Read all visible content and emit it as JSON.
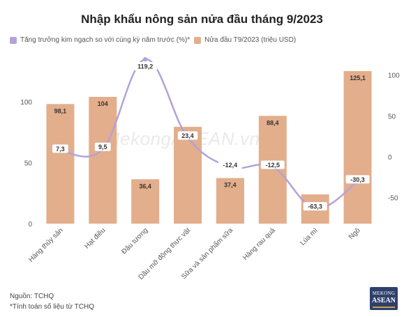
{
  "title": "Nhập khẩu nông sản nửa đầu tháng 9/2023",
  "legend": {
    "line_label": "Tăng trưởng kim ngạch so với cùng kỳ năm trước (%)*",
    "bar_label": "Nửa đầu T9/2023 (triệu USD)"
  },
  "source": "Nguồn: TCHQ",
  "note": "*Tính toán số liệu từ TCHQ",
  "watermark": "MekongASEAN.vn",
  "logo": {
    "top": "MEKONG",
    "bottom": "ASEAN"
  },
  "colors": {
    "bar": "#e3ae8c",
    "line": "#b3a2d6",
    "axis_text": "#555555"
  },
  "chart_data": {
    "type": "bar+line",
    "categories": [
      "Hàng thủy sản",
      "Hạt điều",
      "Đậu tương",
      "Dầu mỡ động thực vật",
      "Sữa và sản phẩm sữa",
      "Hàng rau quả",
      "Lúa mì",
      "Ngô"
    ],
    "series": [
      {
        "name": "Nửa đầu T9/2023 (triệu USD)",
        "type": "bar",
        "axis": "left",
        "values": [
          98.1,
          104,
          36.4,
          79.4,
          37.4,
          88.4,
          24.0,
          125.1
        ],
        "labels": [
          "98,1",
          "104",
          "36,4",
          "79,4",
          "37,4",
          "88,4",
          "",
          "125,1"
        ]
      },
      {
        "name": "Tăng trưởng kim ngạch so với cùng kỳ năm trước (%)*",
        "type": "line",
        "axis": "right",
        "values": [
          7.3,
          9.5,
          119.2,
          23.4,
          -12.4,
          -12.5,
          -63.3,
          -30.3
        ],
        "labels": [
          "7,3",
          "9,5",
          "119,2",
          "23,4",
          "-12,4",
          "-12,5",
          "-63,3",
          "-30,3"
        ]
      }
    ],
    "left_axis": {
      "ylim": [
        0,
        140
      ],
      "ticks": [
        0,
        50,
        100
      ]
    },
    "right_axis": {
      "ylim": [
        -82,
        127
      ],
      "ticks": [
        -50,
        0,
        50,
        100
      ]
    },
    "legend_position": "top-left",
    "grid": false
  }
}
